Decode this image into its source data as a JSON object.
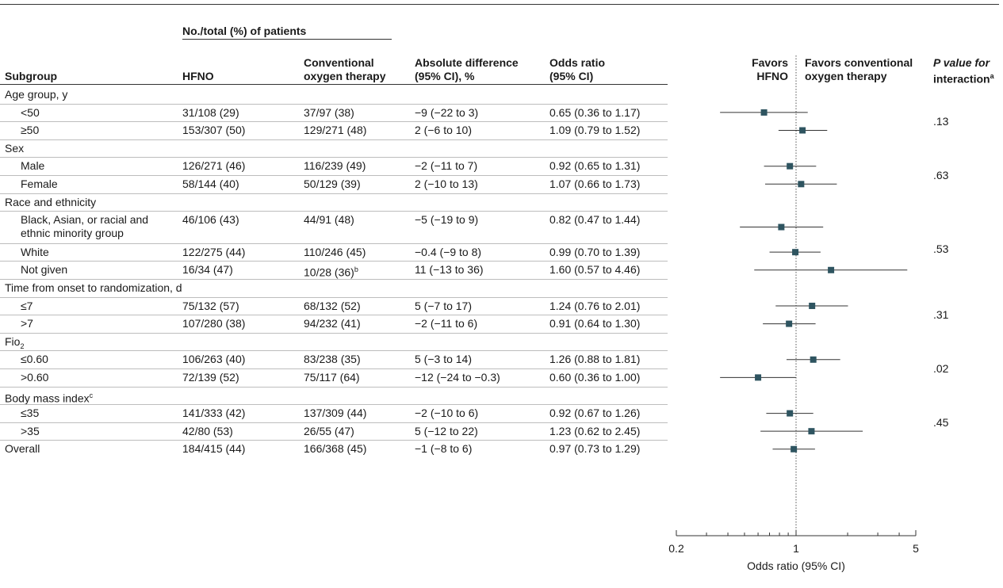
{
  "header": {
    "group_label": "No./total (%) of patients",
    "col_subgroup": "Subgroup",
    "col_hfno": "HFNO",
    "col_conv_1": "Conventional",
    "col_conv_2": "oxygen therapy",
    "col_absdiff_1": "Absolute difference",
    "col_absdiff_2": "(95% CI), %",
    "col_or_1": "Odds ratio",
    "col_or_2": "(95% CI)",
    "favors_hfno_1": "Favors",
    "favors_hfno_2": "HFNO",
    "favors_conv_1": "Favors conventional",
    "favors_conv_2": "oxygen therapy",
    "pval_1": "P value for",
    "pval_2": "interaction",
    "pval_sup": "a"
  },
  "chart_data": {
    "type": "forest",
    "xlabel": "Odds ratio (95% CI)",
    "xscale": "log",
    "xlim": [
      0.2,
      5
    ],
    "xticks": [
      0.2,
      1,
      5
    ],
    "xtick_labels": [
      "0.2",
      "1",
      "5"
    ],
    "reference_line": 1,
    "rows": [
      {
        "kind": "section",
        "label": "Age group, y"
      },
      {
        "kind": "data",
        "label": "<50",
        "hfno": "31/108 (29)",
        "conv": "37/97 (38)",
        "absdiff": "−9 (−22 to 3)",
        "or_text": "0.65 (0.36 to 1.17)",
        "or": 0.65,
        "lo": 0.36,
        "hi": 1.17
      },
      {
        "kind": "data",
        "label": "≥50",
        "hfno": "153/307 (50)",
        "conv": "129/271 (48)",
        "absdiff": "2 (−6 to 10)",
        "or_text": "1.09 (0.79 to 1.52)",
        "or": 1.09,
        "lo": 0.79,
        "hi": 1.52
      },
      {
        "kind": "section",
        "label": "Sex"
      },
      {
        "kind": "data",
        "label": "Male",
        "hfno": "126/271 (46)",
        "conv": "116/239 (49)",
        "absdiff": "−2 (−11 to 7)",
        "or_text": "0.92 (0.65 to 1.31)",
        "or": 0.92,
        "lo": 0.65,
        "hi": 1.31
      },
      {
        "kind": "data",
        "label": "Female",
        "hfno": "58/144 (40)",
        "conv": "50/129 (39)",
        "absdiff": "2 (−10 to 13)",
        "or_text": "1.07 (0.66 to 1.73)",
        "or": 1.07,
        "lo": 0.66,
        "hi": 1.73
      },
      {
        "kind": "section",
        "label": "Race and ethnicity"
      },
      {
        "kind": "data",
        "label": "Black, Asian, or racial and",
        "label2": "ethnic minority group",
        "hfno": "46/106 (43)",
        "conv": "44/91 (48)",
        "absdiff": "−5 (−19 to 9)",
        "or_text": "0.82 (0.47 to 1.44)",
        "or": 0.82,
        "lo": 0.47,
        "hi": 1.44
      },
      {
        "kind": "data",
        "label": "White",
        "hfno": "122/275 (44)",
        "conv": "110/246 (45)",
        "absdiff": "−0.4 (−9 to 8)",
        "or_text": "0.99 (0.70 to 1.39)",
        "or": 0.99,
        "lo": 0.7,
        "hi": 1.39
      },
      {
        "kind": "data",
        "label": "Not given",
        "hfno": "16/34 (47)",
        "conv": "10/28 (36)",
        "conv_sup": "b",
        "absdiff": "11 (−13 to 36)",
        "or_text": "1.60 (0.57 to 4.46)",
        "or": 1.6,
        "lo": 0.57,
        "hi": 4.46
      },
      {
        "kind": "section",
        "label": "Time from onset to randomization, d"
      },
      {
        "kind": "data",
        "label": "≤7",
        "hfno": "75/132 (57)",
        "conv": "68/132 (52)",
        "absdiff": "5 (−7 to 17)",
        "or_text": "1.24 (0.76 to 2.01)",
        "or": 1.24,
        "lo": 0.76,
        "hi": 2.01
      },
      {
        "kind": "data",
        "label": ">7",
        "hfno": "107/280 (38)",
        "conv": "94/232 (41)",
        "absdiff": "−2 (−11 to 6)",
        "or_text": "0.91 (0.64 to 1.30)",
        "or": 0.91,
        "lo": 0.64,
        "hi": 1.3
      },
      {
        "kind": "section",
        "label": "Fio",
        "label_sub": "2"
      },
      {
        "kind": "data",
        "label": "≤0.60",
        "hfno": "106/263 (40)",
        "conv": "83/238 (35)",
        "absdiff": "5 (−3 to 14)",
        "or_text": "1.26 (0.88 to 1.81)",
        "or": 1.26,
        "lo": 0.88,
        "hi": 1.81
      },
      {
        "kind": "data",
        "label": ">0.60",
        "hfno": "72/139 (52)",
        "conv": "75/117 (64)",
        "absdiff": "−12 (−24 to −0.3)",
        "or_text": "0.60 (0.36 to 1.00)",
        "or": 0.6,
        "lo": 0.36,
        "hi": 1.0
      },
      {
        "kind": "section",
        "label": "Body mass index",
        "label_sup": "c"
      },
      {
        "kind": "data",
        "label": "≤35",
        "hfno": "141/333 (42)",
        "conv": "137/309 (44)",
        "absdiff": "−2 (−10 to 6)",
        "or_text": "0.92 (0.67 to 1.26)",
        "or": 0.92,
        "lo": 0.67,
        "hi": 1.26
      },
      {
        "kind": "data",
        "label": ">35",
        "hfno": "42/80 (53)",
        "conv": "26/55 (47)",
        "absdiff": "5 (−12 to 22)",
        "or_text": "1.23 (0.62 to 2.45)",
        "or": 1.23,
        "lo": 0.62,
        "hi": 2.45
      },
      {
        "kind": "overall",
        "label": "Overall",
        "hfno": "184/415 (44)",
        "conv": "166/368 (45)",
        "absdiff": "−1 (−8 to 6)",
        "or_text": "0.97 (0.73 to 1.29)",
        "or": 0.97,
        "lo": 0.73,
        "hi": 1.29
      }
    ],
    "p_values": [
      ".13",
      ".63",
      ".53",
      ".31",
      ".02",
      ".45"
    ]
  },
  "colors": {
    "marker": "#2e5460",
    "line": "#333333",
    "rule": "#bdbdbd"
  }
}
